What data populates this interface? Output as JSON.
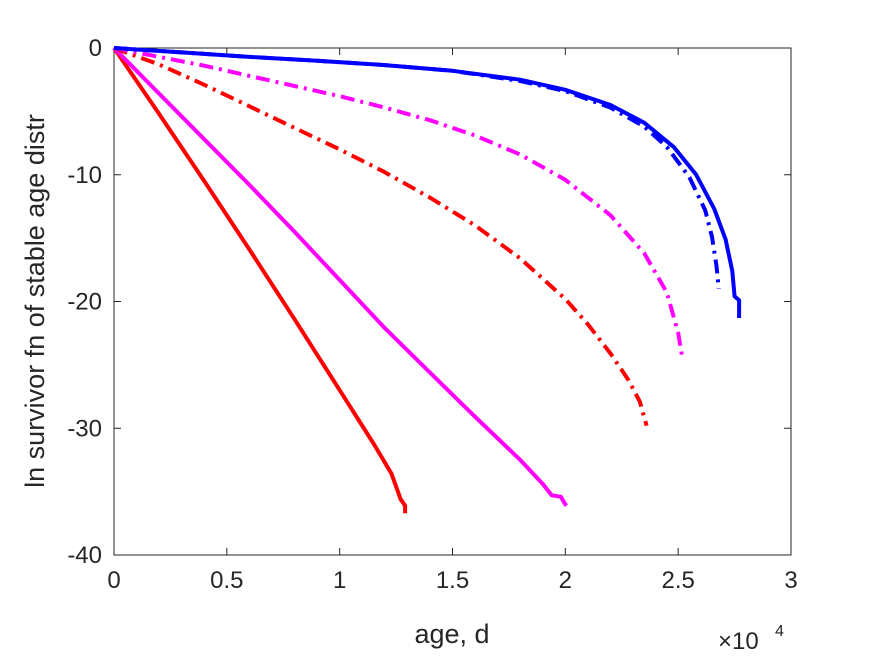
{
  "chart_data": {
    "type": "line",
    "title": "",
    "xlabel": "age, d",
    "ylabel": "ln survivor fn of stable age distr",
    "x_multiplier_label": {
      "base": "×10",
      "exponent": "4"
    },
    "xlim": [
      0,
      30000
    ],
    "ylim": [
      -40,
      0
    ],
    "x_ticks": [
      0,
      5000,
      10000,
      15000,
      20000,
      25000,
      30000
    ],
    "x_tick_labels": [
      "0",
      "0.5",
      "1",
      "1.5",
      "2",
      "2.5",
      "3"
    ],
    "y_ticks": [
      0,
      -10,
      -20,
      -30,
      -40
    ],
    "y_tick_labels": [
      "0",
      "-10",
      "-20",
      "-30",
      "-40"
    ],
    "grid": false,
    "legend": false,
    "series": [
      {
        "color": "#ff0000",
        "style": "solid",
        "points": [
          [
            0,
            0
          ],
          [
            2000,
            -5.2
          ],
          [
            4000,
            -10.5
          ],
          [
            6000,
            -15.9
          ],
          [
            8000,
            -21.4
          ],
          [
            10000,
            -27
          ],
          [
            11500,
            -31.2
          ],
          [
            12300,
            -33.6
          ],
          [
            12500,
            -34.6
          ],
          [
            12700,
            -35.6
          ],
          [
            12900,
            -36.1
          ],
          [
            12900,
            -36.7
          ]
        ]
      },
      {
        "color": "#ff00ff",
        "style": "solid",
        "points": [
          [
            0,
            0
          ],
          [
            2000,
            -3.6
          ],
          [
            4000,
            -7.2
          ],
          [
            6000,
            -10.8
          ],
          [
            8000,
            -14.5
          ],
          [
            10000,
            -18.3
          ],
          [
            12000,
            -22.1
          ],
          [
            14000,
            -25.6
          ],
          [
            16000,
            -29.1
          ],
          [
            18000,
            -32.5
          ],
          [
            19000,
            -34.4
          ],
          [
            19400,
            -35.3
          ],
          [
            19800,
            -35.4
          ],
          [
            20000,
            -36.0
          ],
          [
            20050,
            -36.1
          ]
        ]
      },
      {
        "color": "#ff0000",
        "style": "dashdot",
        "points": [
          [
            0,
            0
          ],
          [
            2000,
            -1.3
          ],
          [
            4000,
            -2.9
          ],
          [
            6000,
            -4.6
          ],
          [
            8000,
            -6.3
          ],
          [
            10000,
            -8.0
          ],
          [
            12000,
            -9.8
          ],
          [
            14000,
            -11.8
          ],
          [
            16000,
            -14.0
          ],
          [
            18000,
            -16.6
          ],
          [
            20000,
            -19.8
          ],
          [
            21000,
            -21.8
          ],
          [
            22000,
            -24.1
          ],
          [
            22800,
            -26.2
          ],
          [
            23300,
            -27.9
          ],
          [
            23600,
            -29.8
          ]
        ]
      },
      {
        "color": "#ff00ff",
        "style": "dashdot",
        "points": [
          [
            0,
            0
          ],
          [
            2000,
            -0.7
          ],
          [
            4000,
            -1.4
          ],
          [
            6000,
            -2.2
          ],
          [
            8000,
            -3.0
          ],
          [
            10000,
            -3.8
          ],
          [
            12000,
            -4.7
          ],
          [
            14000,
            -5.7
          ],
          [
            16000,
            -6.9
          ],
          [
            18000,
            -8.4
          ],
          [
            20000,
            -10.4
          ],
          [
            22000,
            -13.2
          ],
          [
            23500,
            -16.2
          ],
          [
            24500,
            -19.3
          ],
          [
            25000,
            -22.5
          ],
          [
            25200,
            -24.6
          ]
        ]
      },
      {
        "color": "#0000ff",
        "style": "dashdot",
        "points": [
          [
            0,
            0
          ],
          [
            3000,
            -0.35
          ],
          [
            6000,
            -0.7
          ],
          [
            9000,
            -1.0
          ],
          [
            12000,
            -1.35
          ],
          [
            15000,
            -1.8
          ],
          [
            18000,
            -2.6
          ],
          [
            20000,
            -3.4
          ],
          [
            22000,
            -4.7
          ],
          [
            23500,
            -6.2
          ],
          [
            24500,
            -7.8
          ],
          [
            25500,
            -10.2
          ],
          [
            26200,
            -12.8
          ],
          [
            26500,
            -14.9
          ],
          [
            26700,
            -17.2
          ],
          [
            26800,
            -19.0
          ]
        ]
      },
      {
        "color": "#0000ff",
        "style": "solid",
        "points": [
          [
            0,
            0
          ],
          [
            3000,
            -0.35
          ],
          [
            6000,
            -0.7
          ],
          [
            9000,
            -1.0
          ],
          [
            12000,
            -1.35
          ],
          [
            15000,
            -1.8
          ],
          [
            18000,
            -2.5
          ],
          [
            20000,
            -3.3
          ],
          [
            22000,
            -4.5
          ],
          [
            23500,
            -5.9
          ],
          [
            24800,
            -7.8
          ],
          [
            25800,
            -10.0
          ],
          [
            26600,
            -12.7
          ],
          [
            27100,
            -15.1
          ],
          [
            27400,
            -17.6
          ],
          [
            27500,
            -19.6
          ],
          [
            27700,
            -19.9
          ],
          [
            27700,
            -21.3
          ]
        ]
      }
    ]
  }
}
